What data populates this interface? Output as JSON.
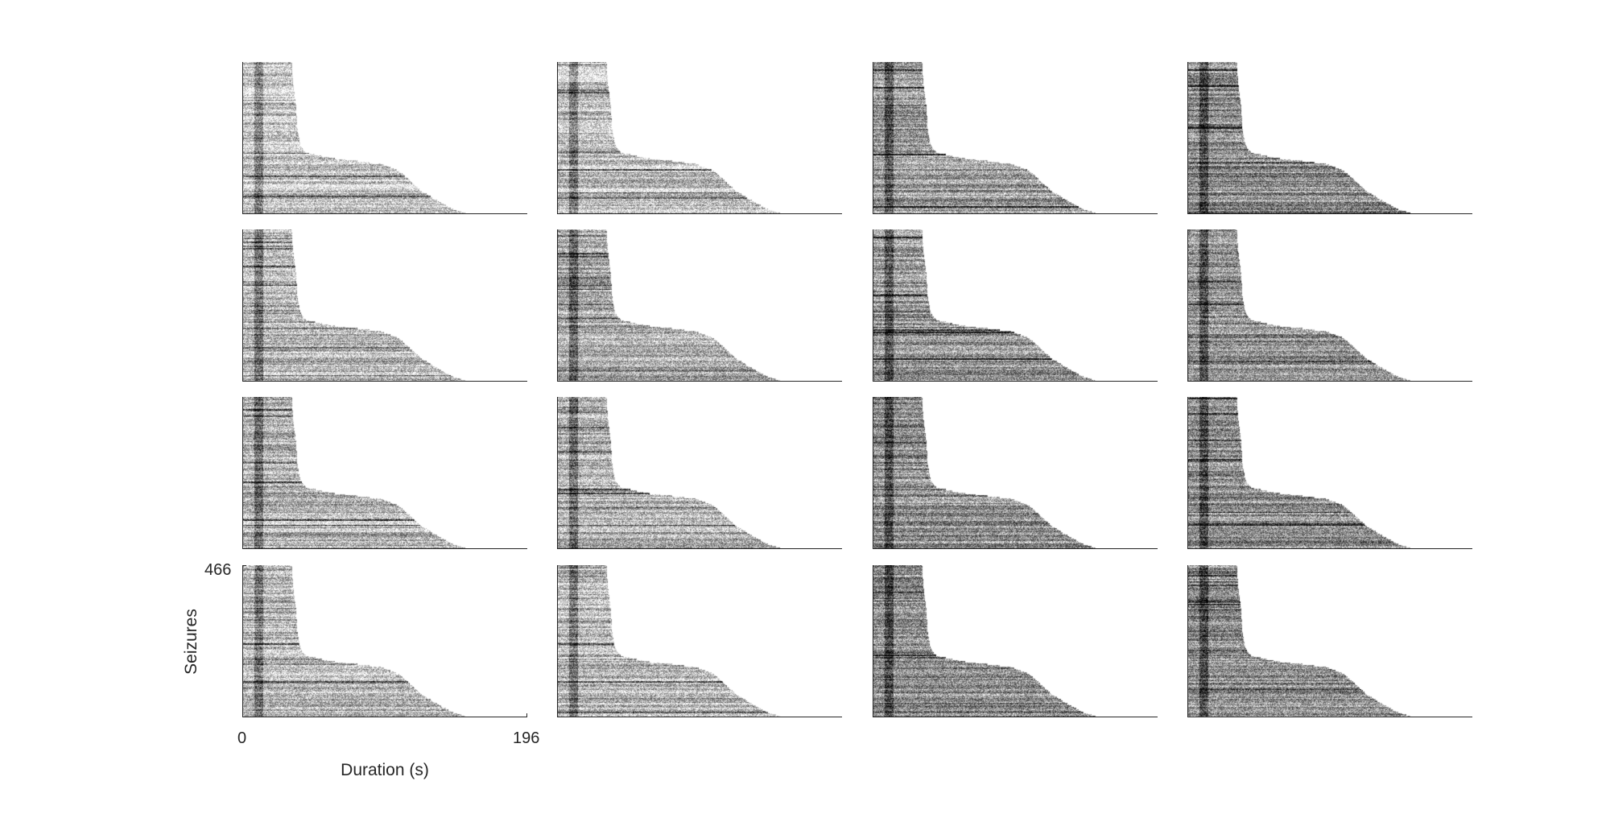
{
  "chart_data": {
    "type": "heatmap",
    "layout": {
      "rows": 4,
      "cols": 4
    },
    "colormap": "gray",
    "xlabel": "Duration (s)",
    "ylabel": "Seizures",
    "xlim": [
      0,
      196
    ],
    "ylim": [
      0,
      466
    ],
    "x_ticks": [
      "0",
      "196"
    ],
    "y_ticks": [
      "466"
    ],
    "labeled_panel": {
      "row": 3,
      "col": 0
    },
    "duration_profile": [
      {
        "seizure_fraction": 0.0,
        "duration_s": 34
      },
      {
        "seizure_fraction": 0.15,
        "duration_s": 35
      },
      {
        "seizure_fraction": 0.3,
        "duration_s": 37
      },
      {
        "seizure_fraction": 0.45,
        "duration_s": 38
      },
      {
        "seizure_fraction": 0.55,
        "duration_s": 40
      },
      {
        "seizure_fraction": 0.6,
        "duration_s": 44
      },
      {
        "seizure_fraction": 0.64,
        "duration_s": 65
      },
      {
        "seizure_fraction": 0.67,
        "duration_s": 95
      },
      {
        "seizure_fraction": 0.72,
        "duration_s": 108
      },
      {
        "seizure_fraction": 0.78,
        "duration_s": 115
      },
      {
        "seizure_fraction": 0.85,
        "duration_s": 123
      },
      {
        "seizure_fraction": 0.92,
        "duration_s": 135
      },
      {
        "seizure_fraction": 0.97,
        "duration_s": 145
      },
      {
        "seizure_fraction": 1.0,
        "duration_s": 155
      }
    ],
    "panel_tone": [
      [
        0.8,
        0.78,
        0.6,
        0.55
      ],
      [
        0.72,
        0.68,
        0.6,
        0.58
      ],
      [
        0.72,
        0.7,
        0.58,
        0.56
      ],
      [
        0.74,
        0.74,
        0.56,
        0.55
      ]
    ]
  }
}
